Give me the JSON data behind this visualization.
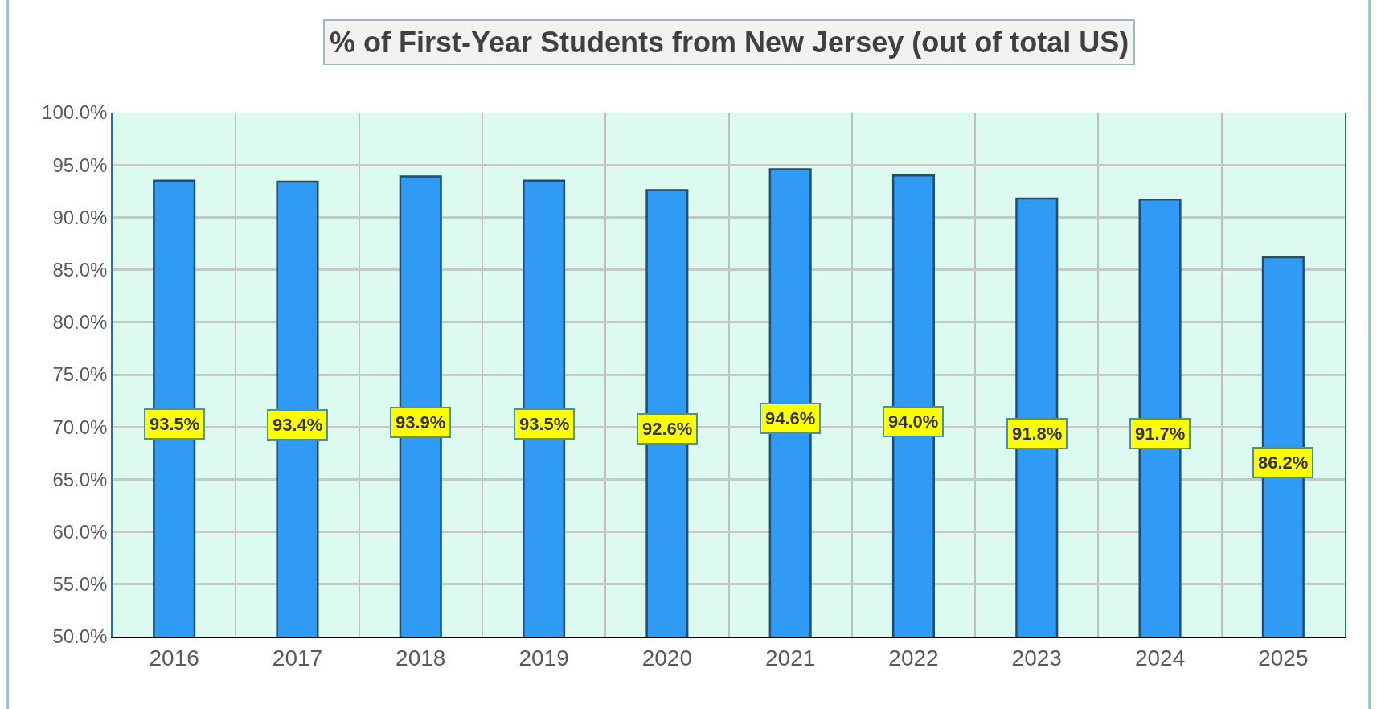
{
  "chart_data": {
    "type": "bar",
    "title": "% of First-Year Students from New Jersey (out of total US)",
    "categories": [
      "2016",
      "2017",
      "2018",
      "2019",
      "2020",
      "2021",
      "2022",
      "2023",
      "2024",
      "2025"
    ],
    "values": [
      93.5,
      93.4,
      93.9,
      93.5,
      92.6,
      94.6,
      94.0,
      91.8,
      91.7,
      86.2
    ],
    "value_labels": [
      "93.5%",
      "93.4%",
      "93.9%",
      "93.5%",
      "92.6%",
      "94.6%",
      "94.0%",
      "91.8%",
      "91.7%",
      "86.2%"
    ],
    "color": "#2f9bf4",
    "ylim": [
      50,
      100
    ],
    "yticks": [
      {
        "value": 50,
        "label": "50.0%"
      },
      {
        "value": 55,
        "label": "55.0%"
      },
      {
        "value": 60,
        "label": "60.0%"
      },
      {
        "value": 65,
        "label": "65.0%"
      },
      {
        "value": 70,
        "label": "70.0%"
      },
      {
        "value": 75,
        "label": "75.0%"
      },
      {
        "value": 80,
        "label": "80.0%"
      },
      {
        "value": 85,
        "label": "85.0%"
      },
      {
        "value": 90,
        "label": "90.0%"
      },
      {
        "value": 95,
        "label": "95.0%"
      },
      {
        "value": 100,
        "label": "100.0%"
      }
    ],
    "grid": true
  }
}
